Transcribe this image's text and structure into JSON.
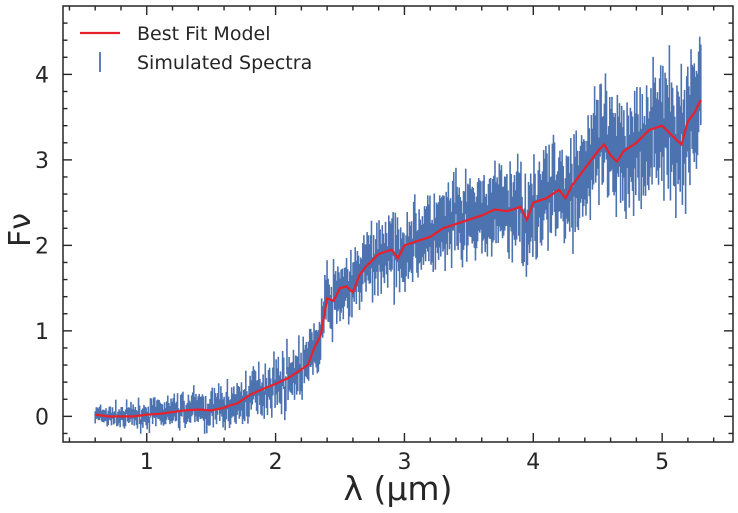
{
  "chart_data": {
    "type": "line",
    "title": "",
    "xlabel": "λ (μm)",
    "ylabel": "Fν",
    "xlim": [
      0.35,
      5.55
    ],
    "ylim": [
      -0.3,
      4.8
    ],
    "xticks": [
      1,
      2,
      3,
      4,
      5
    ],
    "yticks": [
      0,
      1,
      2,
      3,
      4
    ],
    "grid": false,
    "legend": {
      "placement": "top-left"
    },
    "series": [
      {
        "name": "Best Fit Model",
        "kind": "line",
        "color": "#e8202a",
        "x": [
          0.6,
          0.7,
          0.8,
          0.9,
          1.0,
          1.1,
          1.2,
          1.3,
          1.4,
          1.5,
          1.6,
          1.65,
          1.7,
          1.8,
          1.9,
          2.0,
          2.1,
          2.2,
          2.25,
          2.3,
          2.35,
          2.38,
          2.4,
          2.45,
          2.5,
          2.55,
          2.6,
          2.65,
          2.7,
          2.8,
          2.9,
          2.95,
          3.0,
          3.1,
          3.2,
          3.3,
          3.4,
          3.5,
          3.6,
          3.7,
          3.8,
          3.9,
          3.95,
          4.0,
          4.1,
          4.2,
          4.25,
          4.3,
          4.4,
          4.5,
          4.55,
          4.6,
          4.65,
          4.7,
          4.8,
          4.9,
          5.0,
          5.1,
          5.15,
          5.2,
          5.25,
          5.3
        ],
        "values": [
          0.02,
          0.0,
          0.0,
          0.0,
          0.02,
          0.03,
          0.05,
          0.07,
          0.08,
          0.07,
          0.1,
          0.13,
          0.15,
          0.25,
          0.32,
          0.38,
          0.45,
          0.55,
          0.6,
          0.8,
          0.95,
          1.2,
          1.38,
          1.35,
          1.5,
          1.52,
          1.45,
          1.65,
          1.75,
          1.9,
          1.95,
          1.85,
          2.0,
          2.05,
          2.1,
          2.2,
          2.25,
          2.3,
          2.35,
          2.42,
          2.4,
          2.45,
          2.3,
          2.5,
          2.55,
          2.65,
          2.55,
          2.7,
          2.9,
          3.1,
          3.18,
          3.05,
          2.98,
          3.1,
          3.2,
          3.35,
          3.4,
          3.25,
          3.18,
          3.45,
          3.55,
          3.7
        ]
      },
      {
        "name": "Simulated Spectra",
        "kind": "errorbar",
        "color": "#4c72b0",
        "x_range": [
          0.6,
          5.3
        ],
        "n_points": 560
      }
    ]
  }
}
